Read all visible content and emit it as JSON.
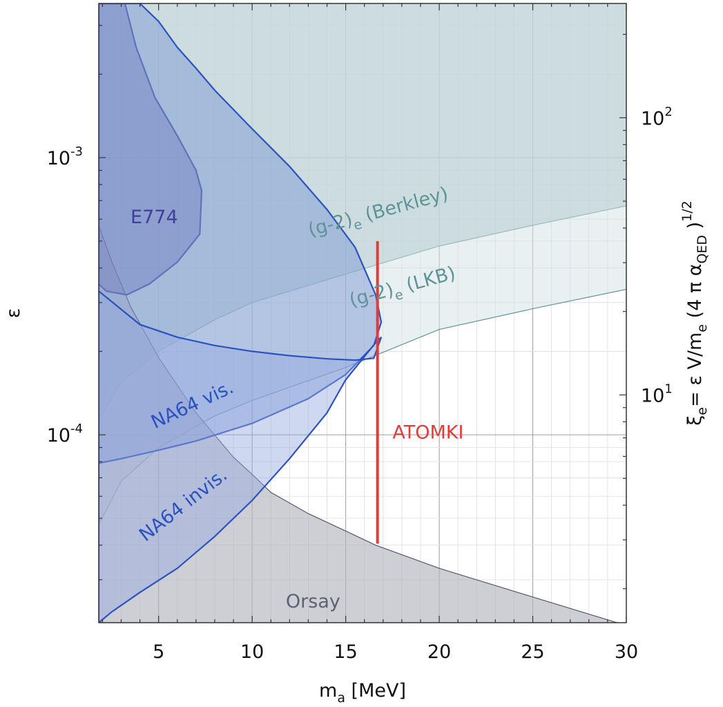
{
  "chart_data": {
    "type": "area",
    "xlabel": {
      "main": "m",
      "sub": "a",
      "rest": " [MeV]"
    },
    "ylabel": "ε",
    "ylabel_right": {
      "xi": "ξ",
      "xi_sub": "e",
      "expr1": "= ε V/m",
      "me_sub": "e",
      "expr2": " (4 π α",
      "alpha_sub": "QED",
      "expr3": " )",
      "power": "1/2"
    },
    "xlim": [
      1.8,
      30.0
    ],
    "ylim": [
      2.1e-05,
      0.0036
    ],
    "yscale": "log",
    "x_ticks": [
      {
        "value": 5,
        "label": "5"
      },
      {
        "value": 10,
        "label": "10"
      },
      {
        "value": 15,
        "label": "15"
      },
      {
        "value": 20,
        "label": "20"
      },
      {
        "value": 25,
        "label": "25"
      },
      {
        "value": 30,
        "label": "30"
      }
    ],
    "y_ticks": [
      {
        "value": 0.001,
        "base": "10",
        "exp": "-3"
      },
      {
        "value": 0.0001,
        "base": "10",
        "exp": "-4"
      }
    ],
    "y_right_ticks": [
      {
        "eps_position": 0.001393,
        "base": "10",
        "exp": "2"
      },
      {
        "eps_position": 0.0001393,
        "base": "10",
        "exp": "1"
      }
    ],
    "grid": true,
    "regions": [
      {
        "name": "(g-2)e (Berkley)",
        "label_parts": [
          "(g-2)",
          "e",
          " (Berkley)"
        ],
        "label_color": "#5f9399",
        "fill": "#a9c3c8",
        "opacity": 0.65,
        "stroke": "#5f9399",
        "boundary": [
          [
            1.8,
            0.000114
          ],
          [
            3,
            0.000155
          ],
          [
            5,
            0.0002
          ],
          [
            8,
            0.00026
          ],
          [
            10,
            0.0003
          ],
          [
            15,
            0.00038
          ],
          [
            20,
            0.00048
          ],
          [
            25,
            0.00057
          ],
          [
            30,
            0.00067
          ]
        ],
        "label_at": [
          13.1,
          0.00052
        ],
        "label_rotate": -15
      },
      {
        "name": "(g-2)e (LKB)",
        "label_parts": [
          "(g-2)",
          "e",
          " (LKB)"
        ],
        "label_color": "#5f9399",
        "fill": "#d3e2e4",
        "opacity": 0.5,
        "stroke": "#5f9399",
        "boundary": [
          [
            1.8,
            4.75e-05
          ],
          [
            3,
            6.8e-05
          ],
          [
            5,
            9e-05
          ],
          [
            8,
            0.000117
          ],
          [
            10,
            0.000133
          ],
          [
            15,
            0.000175
          ],
          [
            20,
            0.00024
          ],
          [
            25,
            0.000285
          ],
          [
            30,
            0.000335
          ]
        ],
        "label_at": [
          15.3,
          0.00029
        ],
        "label_rotate": -15
      },
      {
        "name": "Orsay",
        "label_color": "#5d6172",
        "fill": "#b3b3bf",
        "opacity": 0.65,
        "stroke": "#55586a",
        "boundary": [
          [
            1.8,
            0.00057
          ],
          [
            2.5,
            0.00042
          ],
          [
            3.5,
            0.00029
          ],
          [
            5,
            0.00019
          ],
          [
            7,
            0.00012
          ],
          [
            9,
            8.3e-05
          ],
          [
            10,
            7.2e-05
          ],
          [
            11,
            6.2e-05
          ],
          [
            13,
            5.2e-05
          ],
          [
            15,
            4.5e-05
          ],
          [
            16.6,
            4e-05
          ],
          [
            20,
            3.3e-05
          ],
          [
            25,
            2.6e-05
          ],
          [
            29.5,
            2.1e-05
          ]
        ],
        "label_at": [
          11.8,
          2.38e-05
        ]
      },
      {
        "name": "E774",
        "label_color": "#3d3f98",
        "fill": "#5e60a8",
        "opacity": 0.45,
        "stroke": "#3f4aa6",
        "polygon": [
          [
            1.8,
            0.0036
          ],
          [
            3.2,
            0.0036
          ],
          [
            3.8,
            0.0025
          ],
          [
            4.8,
            0.00165
          ],
          [
            6,
            0.0012
          ],
          [
            7,
            0.0009
          ],
          [
            7.3,
            0.00076
          ],
          [
            7.2,
            0.00053
          ],
          [
            6,
            0.00042
          ],
          [
            4.5,
            0.00035
          ],
          [
            3.3,
            0.00032
          ],
          [
            2.2,
            0.00033
          ],
          [
            1.8,
            0.00035
          ]
        ],
        "label_at": [
          3.5,
          0.00058
        ]
      },
      {
        "name": "NA64 vis.",
        "label_color": "#2a52c0",
        "fill": "#7d99d6",
        "opacity": 0.5,
        "stroke": "#2a52c0",
        "polygon": [
          [
            1.8,
            0.0036
          ],
          [
            4.0,
            0.0036
          ],
          [
            5,
            0.0031
          ],
          [
            6,
            0.0025
          ],
          [
            7,
            0.0021
          ],
          [
            8,
            0.00175
          ],
          [
            10,
            0.00127
          ],
          [
            12,
            0.00093
          ],
          [
            14,
            0.00065
          ],
          [
            15.5,
            0.000475
          ],
          [
            16.6,
            0.00032
          ],
          [
            16.9,
            0.000255
          ],
          [
            16.5,
            0.00021
          ],
          [
            15,
            0.000165
          ],
          [
            13,
            0.000135
          ],
          [
            10,
            0.00011
          ],
          [
            7,
            9.5e-05
          ],
          [
            5,
            8.8e-05
          ],
          [
            3,
            8.2e-05
          ],
          [
            1.8,
            7.9e-05
          ]
        ],
        "label_at": [
          4.8,
          0.000105
        ],
        "label_rotate": -25
      },
      {
        "name": "NA64 invis.",
        "label_color": "#2a52c0",
        "fill": "#95a8df",
        "opacity": 0.45,
        "stroke": "#2a52c0",
        "polygon": [
          [
            1.8,
            0.00033
          ],
          [
            4,
            0.00025
          ],
          [
            6,
            0.000225
          ],
          [
            8,
            0.00021
          ],
          [
            10,
            0.0002
          ],
          [
            12,
            0.000193
          ],
          [
            14,
            0.000188
          ],
          [
            15.5,
            0.000186
          ],
          [
            16.5,
            0.000189
          ],
          [
            16.9,
            0.000225
          ],
          [
            16.6,
            0.000215
          ],
          [
            15,
            0.000158
          ],
          [
            14,
            0.00012
          ],
          [
            12,
            8.2e-05
          ],
          [
            10,
            5.8e-05
          ],
          [
            8,
            4.3e-05
          ],
          [
            6,
            3.3e-05
          ],
          [
            4,
            2.7e-05
          ],
          [
            2.5,
            2.3e-05
          ],
          [
            1.8,
            2.1e-05
          ]
        ],
        "label_at": [
          4.3,
          4.1e-05
        ],
        "label_rotate": -38
      }
    ],
    "lines": [
      {
        "name": "ATOMKI",
        "color": "#e53a3a",
        "x": 16.7,
        "y_from": 4.05e-05,
        "y_to": 0.0005,
        "label_at": [
          17.5,
          9.7e-05
        ]
      }
    ]
  }
}
